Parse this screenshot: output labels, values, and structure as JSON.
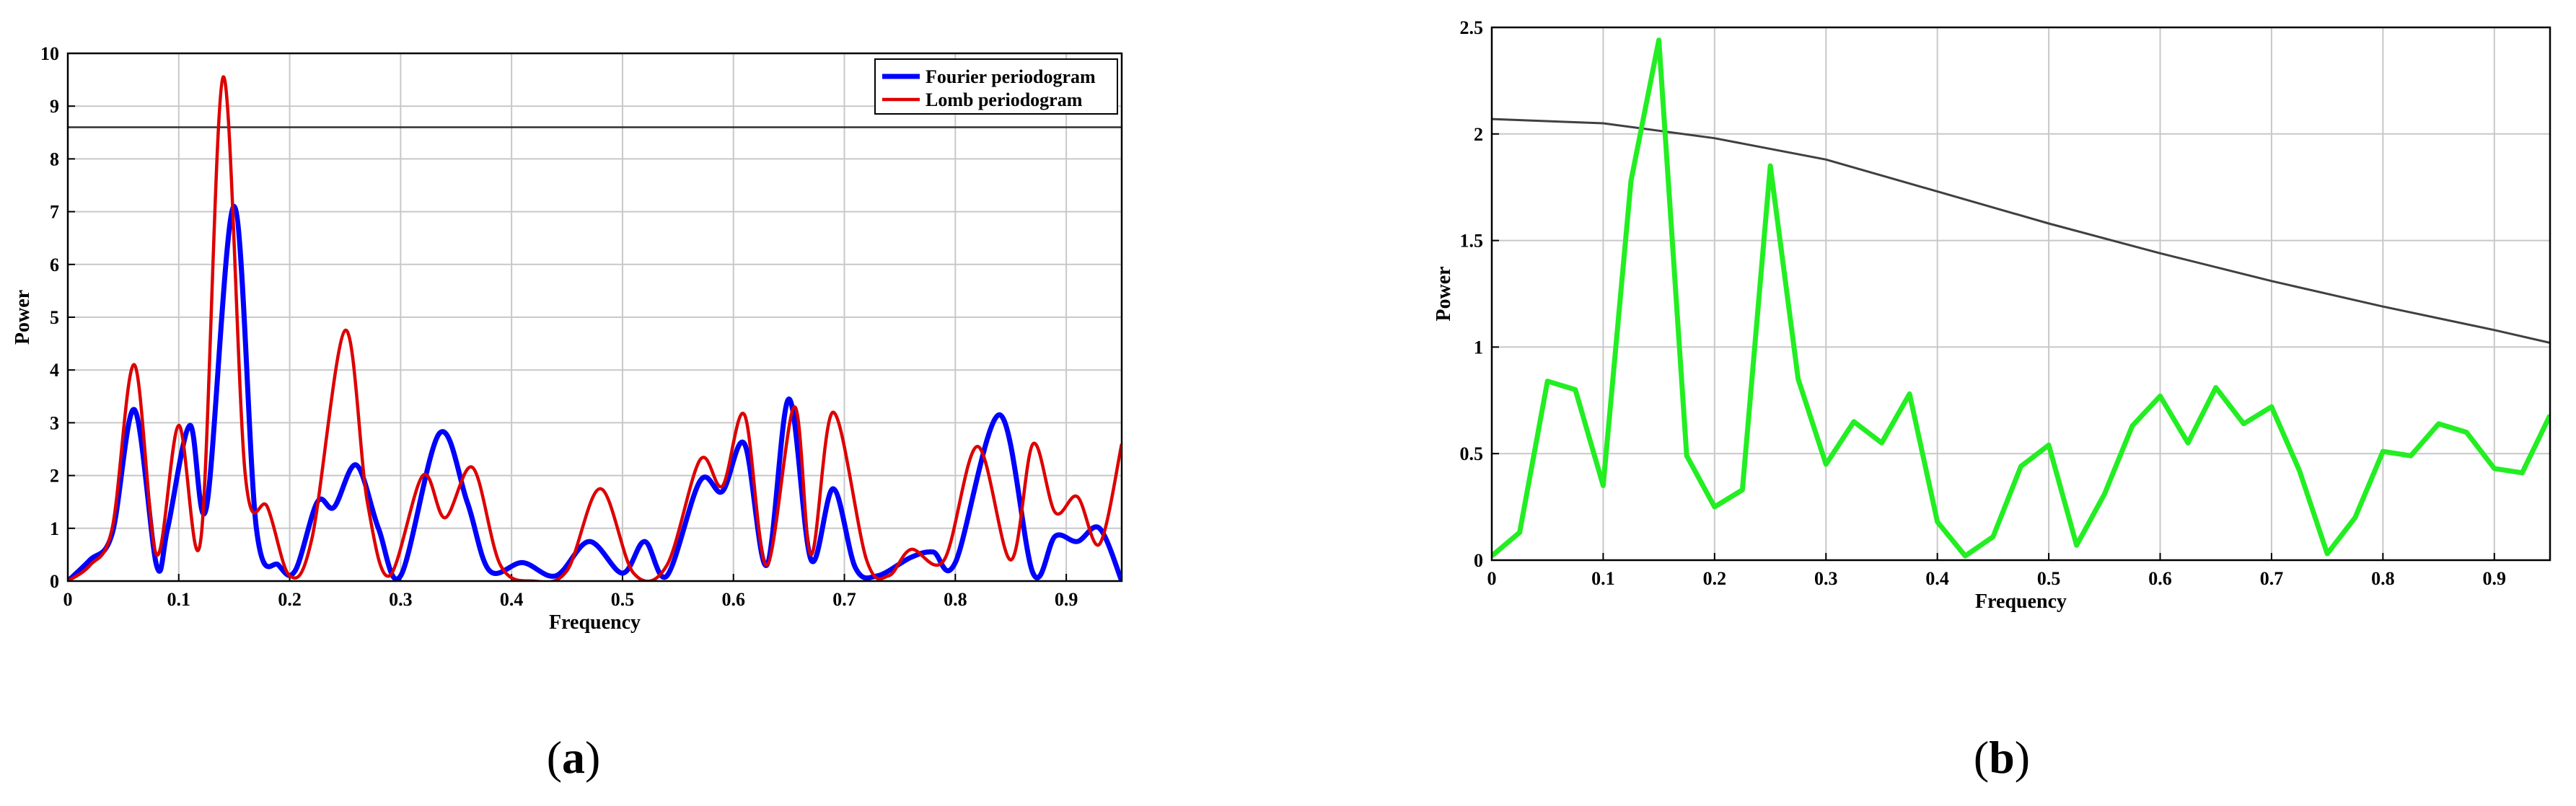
{
  "chart_data": [
    {
      "type": "line",
      "caption": "a",
      "xlabel": "Frequency",
      "ylabel": "Power",
      "xlim": [
        0,
        0.95
      ],
      "ylim": [
        0,
        10
      ],
      "grid": true,
      "legend_position": "top-right",
      "x_ticks": [
        "0",
        "0.1",
        "0.2",
        "0.3",
        "0.4",
        "0.5",
        "0.6",
        "0.7",
        "0.8",
        "0.9"
      ],
      "y_ticks": [
        "0",
        "1",
        "2",
        "3",
        "4",
        "5",
        "6",
        "7",
        "8",
        "9",
        "10"
      ],
      "threshold": 8.6,
      "series": [
        {
          "name": "Fourier periodogram",
          "color": "#0000ff",
          "points": [
            [
              0,
              0
            ],
            [
              0.02,
              0.4
            ],
            [
              0.04,
              0.9
            ],
            [
              0.06,
              3.25
            ],
            [
              0.08,
              0.3
            ],
            [
              0.09,
              1.0
            ],
            [
              0.11,
              2.95
            ],
            [
              0.125,
              1.4
            ],
            [
              0.15,
              7.1
            ],
            [
              0.17,
              1.0
            ],
            [
              0.19,
              0.3
            ],
            [
              0.205,
              0.2
            ],
            [
              0.225,
              1.5
            ],
            [
              0.24,
              1.4
            ],
            [
              0.26,
              2.2
            ],
            [
              0.28,
              1.0
            ],
            [
              0.3,
              0.1
            ],
            [
              0.335,
              2.8
            ],
            [
              0.36,
              1.5
            ],
            [
              0.38,
              0.2
            ],
            [
              0.41,
              0.35
            ],
            [
              0.44,
              0.1
            ],
            [
              0.47,
              0.75
            ],
            [
              0.5,
              0.15
            ],
            [
              0.52,
              0.75
            ],
            [
              0.54,
              0.1
            ],
            [
              0.57,
              1.9
            ],
            [
              0.59,
              1.7
            ],
            [
              0.61,
              2.6
            ],
            [
              0.63,
              0.3
            ],
            [
              0.65,
              3.45
            ],
            [
              0.67,
              0.4
            ],
            [
              0.69,
              1.75
            ],
            [
              0.71,
              0.25
            ],
            [
              0.73,
              0.1
            ],
            [
              0.76,
              0.45
            ],
            [
              0.78,
              0.55
            ],
            [
              0.8,
              0.35
            ],
            [
              0.84,
              3.15
            ],
            [
              0.87,
              0.15
            ],
            [
              0.89,
              0.85
            ],
            [
              0.91,
              0.75
            ],
            [
              0.93,
              1.0
            ],
            [
              0.95,
              0
            ]
          ]
        },
        {
          "name": "Lomb periodogram",
          "color": "#dd0000",
          "points": [
            [
              0,
              0
            ],
            [
              0.02,
              0.3
            ],
            [
              0.04,
              1.0
            ],
            [
              0.06,
              4.1
            ],
            [
              0.08,
              0.5
            ],
            [
              0.1,
              2.95
            ],
            [
              0.12,
              0.8
            ],
            [
              0.14,
              9.55
            ],
            [
              0.16,
              2.0
            ],
            [
              0.18,
              1.4
            ],
            [
              0.2,
              0.1
            ],
            [
              0.22,
              0.8
            ],
            [
              0.25,
              4.75
            ],
            [
              0.27,
              1.5
            ],
            [
              0.29,
              0.1
            ],
            [
              0.32,
              2.0
            ],
            [
              0.34,
              1.2
            ],
            [
              0.365,
              2.15
            ],
            [
              0.39,
              0.3
            ],
            [
              0.42,
              0.0
            ],
            [
              0.45,
              0.2
            ],
            [
              0.48,
              1.75
            ],
            [
              0.51,
              0.15
            ],
            [
              0.54,
              0.3
            ],
            [
              0.57,
              2.3
            ],
            [
              0.59,
              1.8
            ],
            [
              0.61,
              3.15
            ],
            [
              0.63,
              0.3
            ],
            [
              0.655,
              3.3
            ],
            [
              0.67,
              0.5
            ],
            [
              0.69,
              3.2
            ],
            [
              0.72,
              0.4
            ],
            [
              0.74,
              0.1
            ],
            [
              0.76,
              0.6
            ],
            [
              0.79,
              0.4
            ],
            [
              0.82,
              2.55
            ],
            [
              0.85,
              0.4
            ],
            [
              0.87,
              2.6
            ],
            [
              0.89,
              1.3
            ],
            [
              0.91,
              1.6
            ],
            [
              0.93,
              0.7
            ],
            [
              0.95,
              2.6
            ]
          ]
        }
      ]
    },
    {
      "type": "line",
      "caption": "b",
      "xlabel": "Frequency",
      "ylabel": "Power",
      "xlim": [
        0,
        0.95
      ],
      "ylim": [
        0,
        2.5
      ],
      "grid": true,
      "x_ticks": [
        "0",
        "0.1",
        "0.2",
        "0.3",
        "0.4",
        "0.5",
        "0.6",
        "0.7",
        "0.8",
        "0.9"
      ],
      "y_ticks": [
        "0",
        "0.5",
        "1",
        "1.5",
        "2",
        "2.5"
      ],
      "threshold_curve": [
        [
          0,
          2.07
        ],
        [
          0.1,
          2.05
        ],
        [
          0.2,
          1.98
        ],
        [
          0.3,
          1.88
        ],
        [
          0.4,
          1.73
        ],
        [
          0.5,
          1.58
        ],
        [
          0.6,
          1.44
        ],
        [
          0.7,
          1.31
        ],
        [
          0.8,
          1.19
        ],
        [
          0.9,
          1.08
        ],
        [
          0.95,
          1.02
        ]
      ],
      "threshold_color": "#404040",
      "series": [
        {
          "color": "#22ee22",
          "points": [
            [
              0,
              0.02
            ],
            [
              0.025,
              0.13
            ],
            [
              0.05,
              0.84
            ],
            [
              0.075,
              0.8
            ],
            [
              0.1,
              0.35
            ],
            [
              0.125,
              1.78
            ],
            [
              0.15,
              2.44
            ],
            [
              0.175,
              0.49
            ],
            [
              0.2,
              0.25
            ],
            [
              0.225,
              0.33
            ],
            [
              0.25,
              1.85
            ],
            [
              0.275,
              0.85
            ],
            [
              0.3,
              0.45
            ],
            [
              0.325,
              0.65
            ],
            [
              0.35,
              0.55
            ],
            [
              0.375,
              0.78
            ],
            [
              0.4,
              0.18
            ],
            [
              0.425,
              0.02
            ],
            [
              0.45,
              0.11
            ],
            [
              0.475,
              0.44
            ],
            [
              0.5,
              0.54
            ],
            [
              0.525,
              0.07
            ],
            [
              0.55,
              0.31
            ],
            [
              0.575,
              0.63
            ],
            [
              0.6,
              0.77
            ],
            [
              0.625,
              0.55
            ],
            [
              0.65,
              0.81
            ],
            [
              0.675,
              0.64
            ],
            [
              0.7,
              0.72
            ],
            [
              0.725,
              0.42
            ],
            [
              0.75,
              0.03
            ],
            [
              0.775,
              0.2
            ],
            [
              0.8,
              0.51
            ],
            [
              0.825,
              0.49
            ],
            [
              0.85,
              0.64
            ],
            [
              0.875,
              0.6
            ],
            [
              0.9,
              0.43
            ],
            [
              0.925,
              0.41
            ],
            [
              0.95,
              0.68
            ]
          ]
        }
      ]
    }
  ]
}
